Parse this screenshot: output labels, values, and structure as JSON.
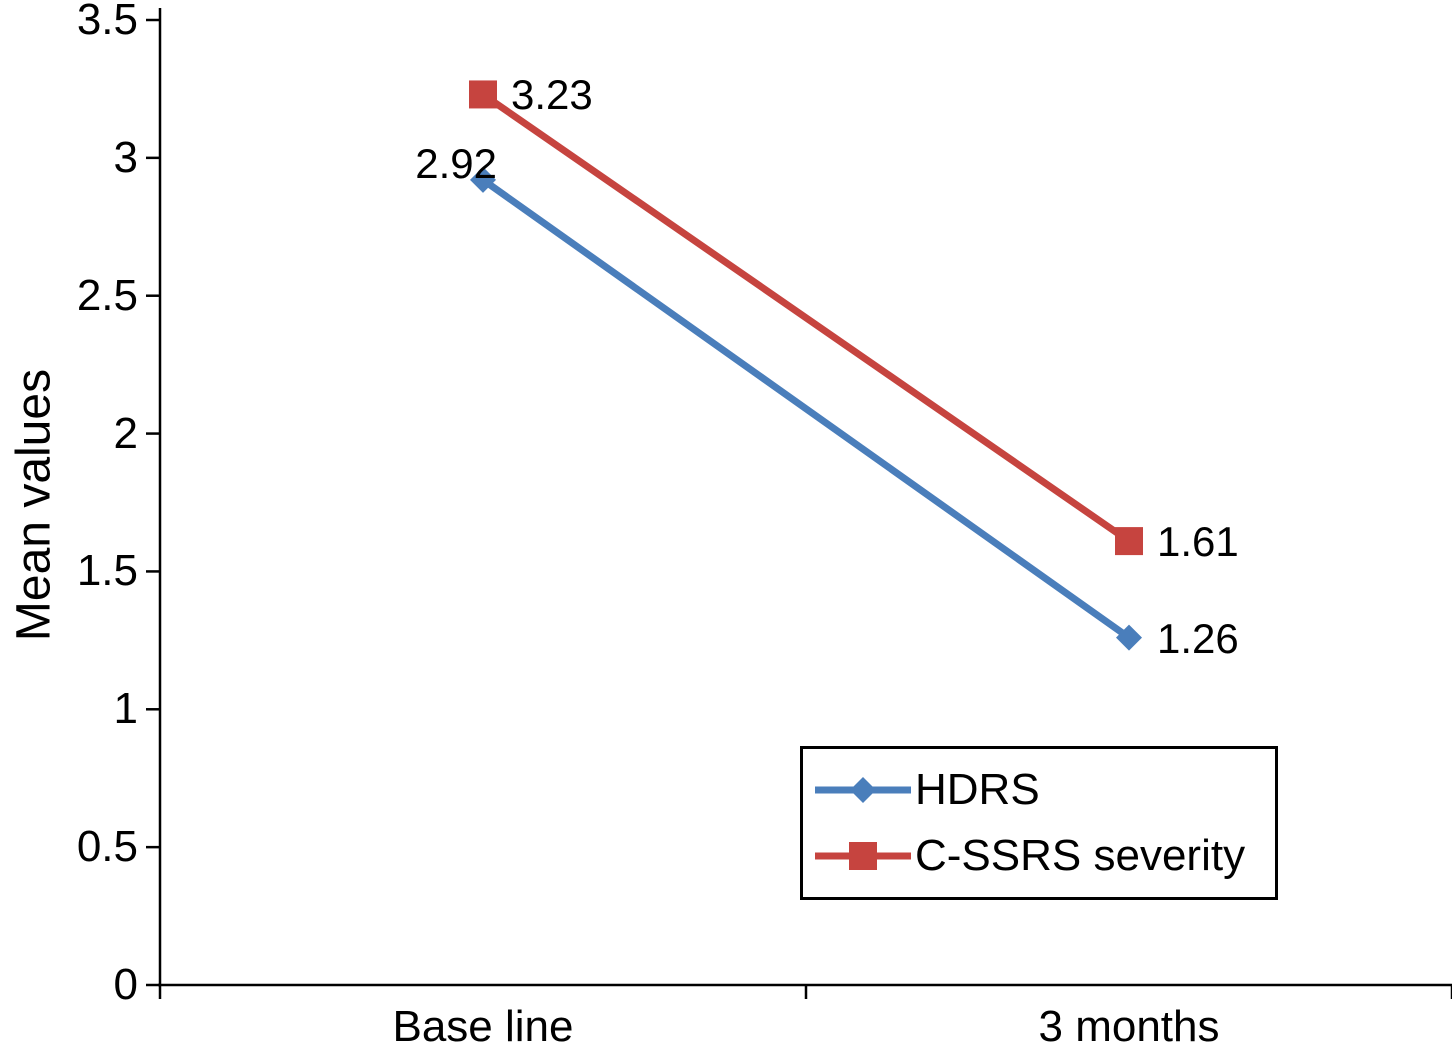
{
  "chart_data": {
    "type": "line",
    "title": "",
    "xlabel": "",
    "ylabel": "Mean values",
    "categories": [
      "Base line",
      "3 months"
    ],
    "series": [
      {
        "name": "HDRS",
        "values": [
          2.92,
          1.26
        ],
        "color": "#4a7ebb",
        "marker": "diamond",
        "label_sides": [
          "left",
          "right"
        ]
      },
      {
        "name": "C-SSRS severity",
        "values": [
          3.23,
          1.61
        ],
        "color": "#c6443f",
        "marker": "square",
        "label_sides": [
          "right",
          "right"
        ]
      }
    ],
    "data_labels": [
      [
        "2.92",
        "1.26"
      ],
      [
        "3.23",
        "1.61"
      ]
    ],
    "ylim": [
      0,
      3.5
    ],
    "ytick_step": 0.5,
    "ytick_labels": [
      "0",
      "0.5",
      "1",
      "1.5",
      "2",
      "2.5",
      "3",
      "3.5"
    ],
    "grid": false,
    "legend_position": "bottom-right",
    "axis_color": "#000000",
    "text_color": "#000000"
  }
}
